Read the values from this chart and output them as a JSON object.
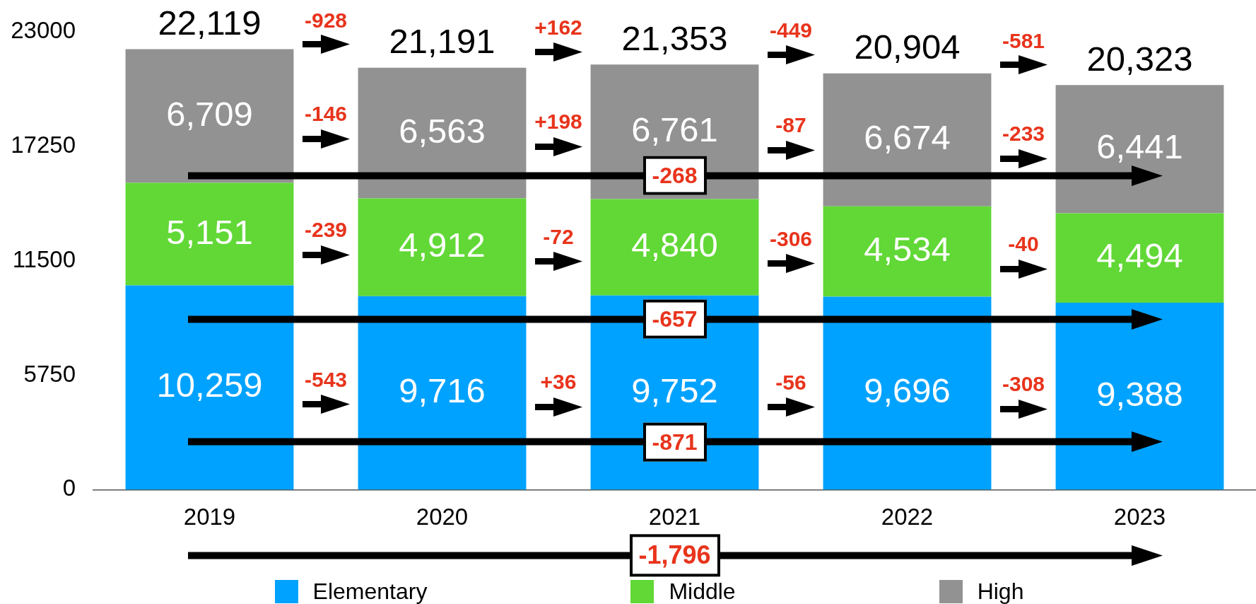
{
  "chart_data": {
    "type": "bar",
    "stacked": true,
    "categories": [
      "2019",
      "2020",
      "2021",
      "2022",
      "2023"
    ],
    "series": [
      {
        "name": "Elementary",
        "color": "#00a2ff",
        "values": [
          10259,
          9716,
          9752,
          9696,
          9388
        ],
        "value_labels": [
          "10,259",
          "9,716",
          "9,752",
          "9,696",
          "9,388"
        ]
      },
      {
        "name": "Middle",
        "color": "#61d836",
        "values": [
          5151,
          4912,
          4840,
          4534,
          4494
        ],
        "value_labels": [
          "5,151",
          "4,912",
          "4,840",
          "4,534",
          "4,494"
        ]
      },
      {
        "name": "High",
        "color": "#929292",
        "values": [
          6709,
          6563,
          6761,
          6674,
          6441
        ],
        "value_labels": [
          "6,709",
          "6,563",
          "6,761",
          "6,674",
          "6,441"
        ]
      }
    ],
    "ylim": [
      0,
      23000
    ],
    "yticks": [
      0,
      5750,
      11500,
      17250,
      23000
    ],
    "totals": [
      "22,119",
      "21,191",
      "21,353",
      "20,904",
      "20,323"
    ],
    "annotations": [
      "-928",
      "+162",
      "-449",
      "-581",
      "-146",
      "+198",
      "-87",
      "-233",
      "-268",
      "-239",
      "-72",
      "-306",
      "-40",
      "-657",
      "-543",
      "+36",
      "-56",
      "-308",
      "-871",
      "-1,796"
    ],
    "legend": "bottom"
  }
}
